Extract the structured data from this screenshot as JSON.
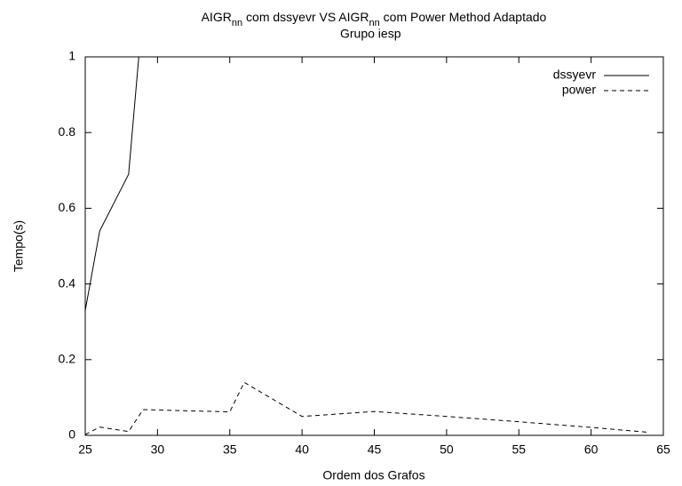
{
  "chart_data": {
    "type": "line",
    "title": [
      "AIGR",
      "nn",
      " com dssyevr   VS   AIGR",
      "nn",
      " com Power Method Adaptado"
    ],
    "subtitle": "Grupo iesp",
    "x_label": "Ordem dos Grafos",
    "y_label": "Tempo(s)",
    "xlim": [
      25,
      65
    ],
    "ylim": [
      0,
      1
    ],
    "xticks": [
      25,
      30,
      35,
      40,
      45,
      50,
      55,
      60,
      65
    ],
    "yticks": [
      0,
      0.2,
      0.4,
      0.6,
      0.8,
      1
    ],
    "legend": "top-right",
    "series": [
      {
        "name": "dssyevr",
        "color": "#000000",
        "line_style": "solid",
        "x": [
          25,
          26,
          28,
          29
        ],
        "values": [
          0.33,
          0.54,
          0.69,
          1.13
        ]
      },
      {
        "name": "power",
        "color": "#000000",
        "line_style": "dashed",
        "x": [
          25,
          26,
          28,
          29,
          35,
          36,
          40,
          45,
          50,
          55,
          60,
          64
        ],
        "values": [
          0.002,
          0.022,
          0.01,
          0.068,
          0.062,
          0.14,
          0.05,
          0.063,
          0.05,
          0.036,
          0.021,
          0.008
        ]
      }
    ]
  }
}
